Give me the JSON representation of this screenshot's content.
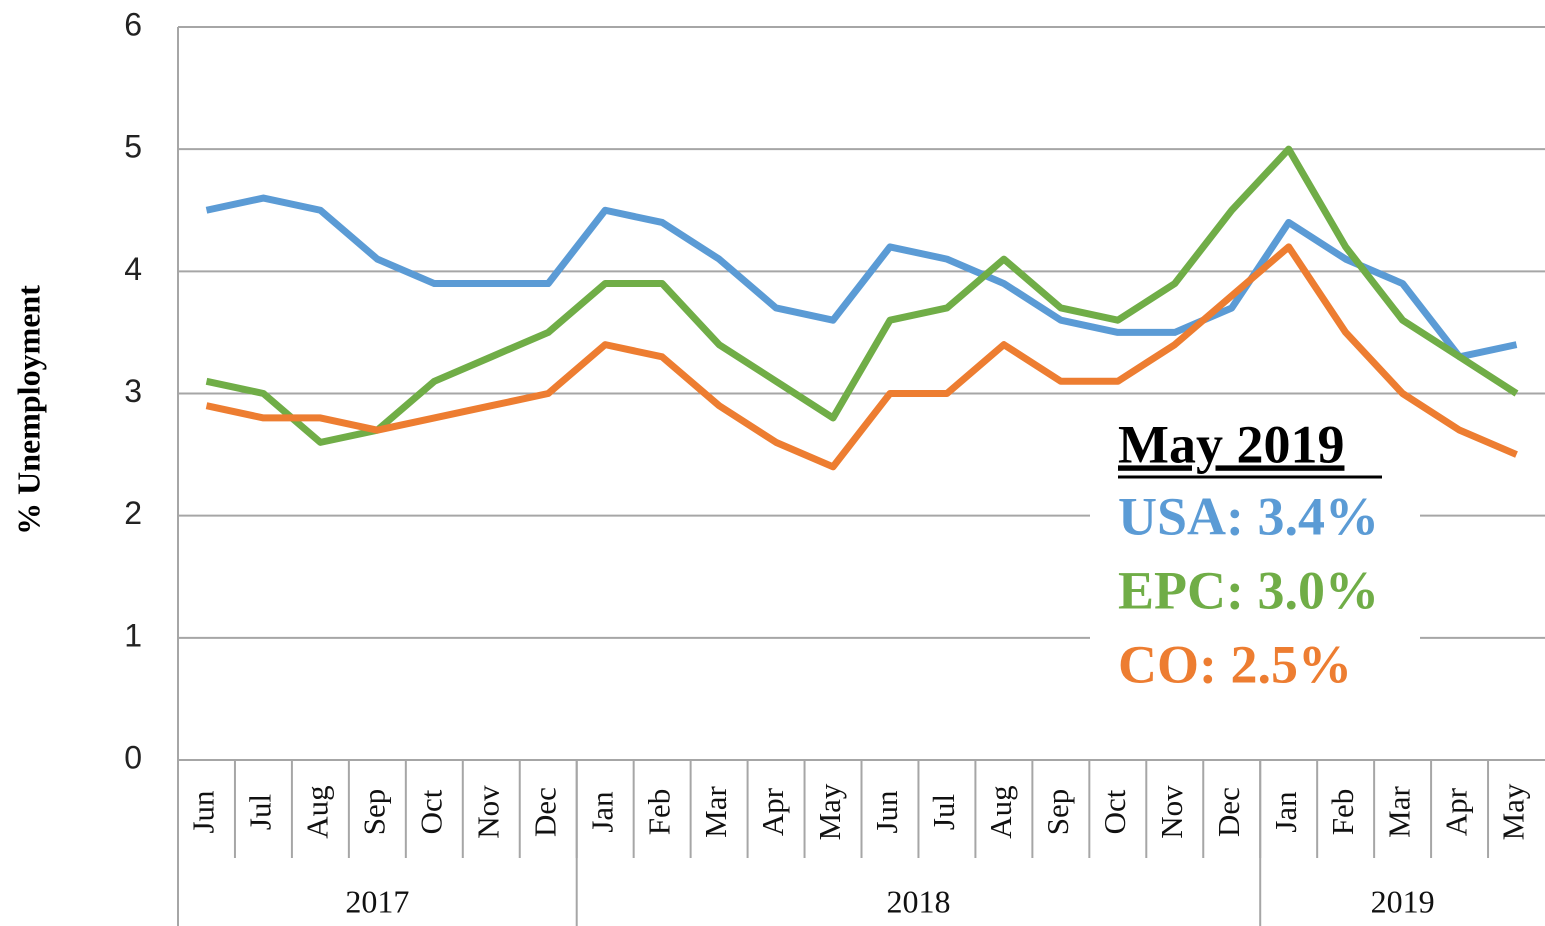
{
  "chart_data": {
    "type": "line",
    "ylabel": "% Unemployment",
    "categories": [
      "Jun",
      "Jul",
      "Aug",
      "Sep",
      "Oct",
      "Nov",
      "Dec",
      "Jan",
      "Feb",
      "Mar",
      "Apr",
      "May",
      "Jun",
      "Jul",
      "Aug",
      "Sep",
      "Oct",
      "Nov",
      "Dec",
      "Jan",
      "Feb",
      "Mar",
      "Apr",
      "May"
    ],
    "category_groups": [
      {
        "label": "2017",
        "count": 7
      },
      {
        "label": "2018",
        "count": 12
      },
      {
        "label": "2019",
        "count": 5
      }
    ],
    "series": [
      {
        "name": "USA",
        "color": "#5b9bd5",
        "values": [
          4.5,
          4.6,
          4.5,
          4.1,
          3.9,
          3.9,
          3.9,
          4.5,
          4.4,
          4.1,
          3.7,
          3.6,
          4.2,
          4.1,
          3.9,
          3.6,
          3.5,
          3.5,
          3.7,
          4.4,
          4.1,
          3.9,
          3.3,
          3.4
        ]
      },
      {
        "name": "EPC",
        "color": "#70ad47",
        "values": [
          3.1,
          3.0,
          2.6,
          2.7,
          3.1,
          3.3,
          3.5,
          3.9,
          3.9,
          3.4,
          3.1,
          2.8,
          3.6,
          3.7,
          4.1,
          3.7,
          3.6,
          3.9,
          4.5,
          5.0,
          4.2,
          3.6,
          3.3,
          3.0
        ]
      },
      {
        "name": "CO",
        "color": "#ed7d31",
        "values": [
          2.9,
          2.8,
          2.8,
          2.7,
          2.8,
          2.9,
          3.0,
          3.4,
          3.3,
          2.9,
          2.6,
          2.4,
          3.0,
          3.0,
          3.4,
          3.1,
          3.1,
          3.4,
          3.8,
          4.2,
          3.5,
          3.0,
          2.7,
          2.5
        ]
      }
    ],
    "annotation": {
      "title": "May 2019",
      "lines": [
        {
          "text": "USA: 3.4%",
          "color": "#5b9bd5"
        },
        {
          "text": "EPC: 3.0%",
          "color": "#70ad47"
        },
        {
          "text": "CO: 2.5%",
          "color": "#ed7d31"
        }
      ]
    },
    "ylim": [
      0,
      6
    ],
    "yticks": [
      0,
      1,
      2,
      3,
      4,
      5,
      6
    ],
    "grid": true
  }
}
